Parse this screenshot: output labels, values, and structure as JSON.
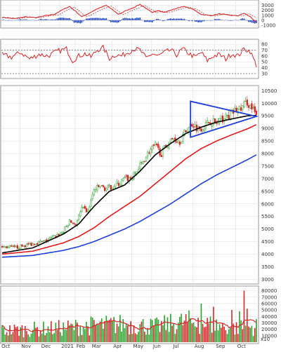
{
  "colors": {
    "bg": "#ffffff",
    "frame": "#9a9a9a",
    "grid": "#dcdcdc",
    "up": "#2ca02c",
    "down": "#d62728",
    "ma_short": "#000000",
    "ma_mid": "#e31a1c",
    "ma_long": "#1f3fd6",
    "triangle": "#1f3fd6",
    "rsi": "#d62728",
    "macd": "#d62728",
    "macd_signal": "#b04040",
    "macd_hist": "#1a3fbf",
    "vol_up": "#2ca02c",
    "vol_down": "#d62728",
    "vol_ma": "#d62728"
  },
  "x_labels": [
    "Oct",
    "Nov",
    "Dec",
    "2021",
    "Feb",
    "Mar",
    "Apr",
    "May",
    "Jun",
    "Jul",
    "Aug",
    "Sep",
    "Oct"
  ],
  "chart_data": [
    {
      "type": "line",
      "panel": "macd",
      "yticks": [
        3000,
        2000,
        1000,
        0,
        -1000
      ],
      "ylim": [
        -1300,
        3800
      ],
      "macd_keypoints": [
        [
          0,
          600
        ],
        [
          8,
          300
        ],
        [
          15,
          700
        ],
        [
          22,
          500
        ],
        [
          28,
          900
        ],
        [
          34,
          1200
        ],
        [
          40,
          2200
        ],
        [
          44,
          2800
        ],
        [
          48,
          1800
        ],
        [
          52,
          700
        ],
        [
          56,
          1300
        ],
        [
          62,
          2300
        ],
        [
          68,
          3000
        ],
        [
          72,
          2100
        ],
        [
          76,
          1200
        ],
        [
          80,
          1800
        ],
        [
          86,
          2600
        ],
        [
          90,
          3200
        ],
        [
          94,
          2400
        ],
        [
          98,
          1500
        ],
        [
          102,
          2000
        ],
        [
          106,
          1600
        ],
        [
          112,
          2200
        ],
        [
          118,
          2800
        ],
        [
          124,
          2300
        ],
        [
          130,
          1200
        ],
        [
          136,
          900
        ],
        [
          142,
          1300
        ],
        [
          148,
          1000
        ],
        [
          154,
          900
        ],
        [
          158,
          1400
        ],
        [
          162,
          700
        ],
        [
          166,
          -400
        ]
      ],
      "signal_lag": 3
    },
    {
      "type": "line",
      "panel": "rsi",
      "yticks": [
        80,
        70,
        60,
        50,
        40,
        30
      ],
      "ylim": [
        24,
        86
      ],
      "reference_lines": [
        70,
        30
      ],
      "rsi_keypoints": [
        [
          0,
          62
        ],
        [
          6,
          58
        ],
        [
          12,
          66
        ],
        [
          18,
          55
        ],
        [
          24,
          63
        ],
        [
          30,
          60
        ],
        [
          36,
          68
        ],
        [
          42,
          72
        ],
        [
          46,
          52
        ],
        [
          50,
          60
        ],
        [
          54,
          64
        ],
        [
          58,
          58
        ],
        [
          62,
          70
        ],
        [
          66,
          74
        ],
        [
          70,
          56
        ],
        [
          74,
          62
        ],
        [
          78,
          60
        ],
        [
          82,
          66
        ],
        [
          86,
          72
        ],
        [
          90,
          70
        ],
        [
          94,
          56
        ],
        [
          98,
          64
        ],
        [
          102,
          60
        ],
        [
          106,
          66
        ],
        [
          110,
          70
        ],
        [
          114,
          62
        ],
        [
          118,
          72
        ],
        [
          122,
          64
        ],
        [
          126,
          58
        ],
        [
          130,
          66
        ],
        [
          134,
          52
        ],
        [
          138,
          60
        ],
        [
          142,
          62
        ],
        [
          146,
          55
        ],
        [
          150,
          64
        ],
        [
          154,
          60
        ],
        [
          158,
          72
        ],
        [
          162,
          68
        ],
        [
          166,
          44
        ]
      ]
    },
    {
      "type": "candlestick",
      "panel": "price",
      "yticks": [
        10500,
        10000,
        9500,
        9000,
        8500,
        8000,
        7500,
        7000,
        6500,
        6000,
        5500,
        5000,
        4500,
        4000,
        3500,
        3000
      ],
      "ylim": [
        2870,
        10650
      ],
      "n_candles": 167,
      "close_keypoints": [
        [
          0,
          4300
        ],
        [
          8,
          4250
        ],
        [
          15,
          4350
        ],
        [
          22,
          4450
        ],
        [
          28,
          4500
        ],
        [
          34,
          4700
        ],
        [
          40,
          4900
        ],
        [
          44,
          5300
        ],
        [
          48,
          5200
        ],
        [
          52,
          5800
        ],
        [
          56,
          5700
        ],
        [
          60,
          6550
        ],
        [
          64,
          6700
        ],
        [
          68,
          6600
        ],
        [
          72,
          6700
        ],
        [
          76,
          6800
        ],
        [
          80,
          7000
        ],
        [
          84,
          7000
        ],
        [
          88,
          7300
        ],
        [
          92,
          7700
        ],
        [
          96,
          8100
        ],
        [
          100,
          8300
        ],
        [
          104,
          8000
        ],
        [
          108,
          8400
        ],
        [
          112,
          8600
        ],
        [
          116,
          8500
        ],
        [
          120,
          8900
        ],
        [
          124,
          9200
        ],
        [
          128,
          9000
        ],
        [
          132,
          9100
        ],
        [
          136,
          9300
        ],
        [
          140,
          9200
        ],
        [
          144,
          9400
        ],
        [
          148,
          9500
        ],
        [
          152,
          9700
        ],
        [
          156,
          9800
        ],
        [
          160,
          10050
        ],
        [
          164,
          9700
        ],
        [
          166,
          9500
        ]
      ],
      "series": [
        {
          "name": "ma_short",
          "keypoints": [
            [
              0,
              4050
            ],
            [
              20,
              4250
            ],
            [
              40,
              4800
            ],
            [
              50,
              5200
            ],
            [
              60,
              5900
            ],
            [
              70,
              6500
            ],
            [
              80,
              6750
            ],
            [
              90,
              7300
            ],
            [
              100,
              7950
            ],
            [
              110,
              8400
            ],
            [
              120,
              8800
            ],
            [
              130,
              9050
            ],
            [
              140,
              9250
            ],
            [
              150,
              9380
            ],
            [
              160,
              9500
            ],
            [
              166,
              9520
            ]
          ]
        },
        {
          "name": "ma_mid",
          "keypoints": [
            [
              0,
              4000
            ],
            [
              20,
              4120
            ],
            [
              40,
              4450
            ],
            [
              50,
              4700
            ],
            [
              60,
              5050
            ],
            [
              70,
              5500
            ],
            [
              80,
              5900
            ],
            [
              90,
              6300
            ],
            [
              100,
              6800
            ],
            [
              110,
              7300
            ],
            [
              120,
              7800
            ],
            [
              130,
              8200
            ],
            [
              140,
              8500
            ],
            [
              150,
              8750
            ],
            [
              160,
              8980
            ],
            [
              166,
              9150
            ]
          ]
        },
        {
          "name": "ma_long",
          "keypoints": [
            [
              0,
              3880
            ],
            [
              20,
              3950
            ],
            [
              40,
              4150
            ],
            [
              50,
              4300
            ],
            [
              60,
              4500
            ],
            [
              70,
              4750
            ],
            [
              80,
              5000
            ],
            [
              90,
              5300
            ],
            [
              100,
              5650
            ],
            [
              110,
              6000
            ],
            [
              120,
              6400
            ],
            [
              130,
              6800
            ],
            [
              140,
              7150
            ],
            [
              150,
              7450
            ],
            [
              160,
              7750
            ],
            [
              166,
              7950
            ]
          ]
        }
      ],
      "triangle": [
        [
          123,
          10080
        ],
        [
          123,
          8650
        ],
        [
          166,
          9480
        ]
      ]
    },
    {
      "type": "bar",
      "panel": "volume",
      "yticks": [
        80000,
        70000,
        60000,
        50000,
        40000,
        30000,
        20000,
        10000
      ],
      "ylim": [
        0,
        85000
      ],
      "unit_label": "x10",
      "volume_keypoints": [
        [
          0,
          18000
        ],
        [
          20,
          20000
        ],
        [
          40,
          22000
        ],
        [
          60,
          26000
        ],
        [
          80,
          28000
        ],
        [
          100,
          24000
        ],
        [
          120,
          32000
        ],
        [
          140,
          26000
        ],
        [
          150,
          22000
        ],
        [
          166,
          24000
        ]
      ],
      "spikes": [
        [
          128,
          38000
        ],
        [
          130,
          60000
        ],
        [
          138,
          55000
        ],
        [
          150,
          50000
        ],
        [
          155,
          48000
        ],
        [
          158,
          80000
        ],
        [
          160,
          52000
        ]
      ]
    }
  ]
}
